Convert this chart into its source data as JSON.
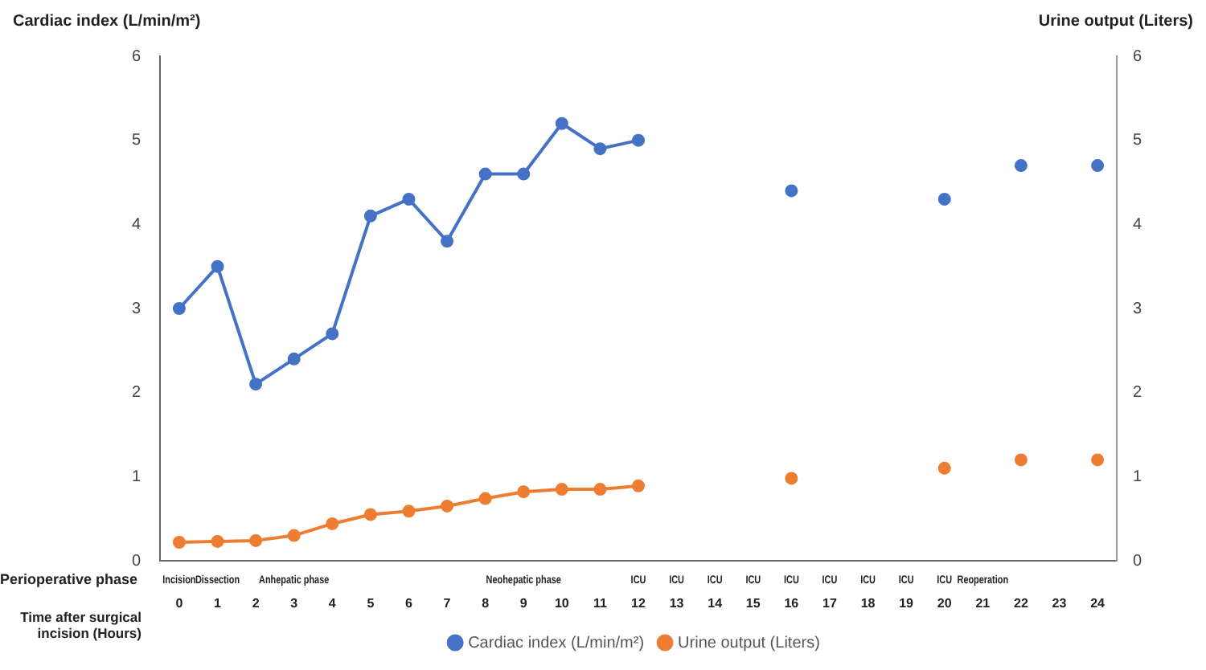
{
  "chart_data": {
    "type": "line",
    "xlabel": "Time after surgical incision (Hours)",
    "ylabel": "Cardiac index (L/min/m²)",
    "y2label": "Urine output (Liters)",
    "categories": [
      "Incision\n0",
      "Dissection\n1",
      "2",
      "Anhepatic phase\n3",
      "4",
      "5",
      "6",
      "7",
      "8",
      "Neohepatic phase\n9",
      "10",
      "11",
      "ICU\n12",
      "ICU\n13",
      "ICU\n14",
      "ICU\n15",
      "ICU\n16",
      "ICU\n17",
      "ICU\n18",
      "ICU\n19",
      "ICU\n20",
      "Reoperation\n21",
      "22",
      "23",
      "24"
    ],
    "series": [
      {
        "name": "Cardiac index (L/min/m²)",
        "color": "#4472c4",
        "values": [
          3.0,
          3.5,
          2.1,
          2.4,
          2.7,
          4.1,
          4.3,
          3.8,
          4.6,
          4.6,
          5.2,
          4.9,
          5.0,
          null,
          null,
          null,
          4.4,
          null,
          null,
          null,
          4.3,
          null,
          4.7,
          null,
          4.7
        ]
      },
      {
        "name": "Urine output (Liters)",
        "color": "#ed7d31",
        "axis": "y2",
        "values": [
          0.22,
          0.23,
          0.24,
          0.3,
          0.44,
          0.55,
          0.59,
          0.65,
          0.74,
          0.82,
          0.85,
          0.85,
          0.89,
          null,
          null,
          null,
          0.98,
          null,
          null,
          null,
          1.1,
          null,
          1.2,
          null,
          1.2
        ]
      }
    ],
    "ylim": [
      0,
      6
    ],
    "yticks": [
      0,
      1,
      2,
      3,
      4,
      5,
      6
    ],
    "y2lim": [
      0,
      6
    ],
    "y2ticks": [
      0,
      1,
      2,
      3,
      4,
      5,
      6
    ],
    "annotations": [
      "Perioperative phase"
    ],
    "marker": "circle",
    "line_style": "solid",
    "grid": false,
    "legend": "bottom"
  }
}
